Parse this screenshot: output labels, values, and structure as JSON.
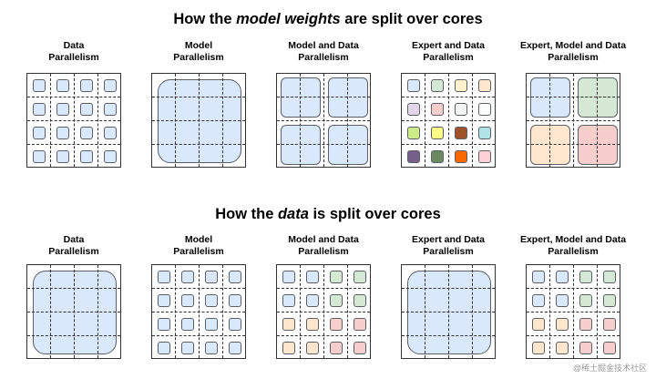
{
  "headings": {
    "weights": {
      "pre": "How the ",
      "em": "model weights",
      "post": " are split over cores"
    },
    "data": {
      "pre": "How the ",
      "em": "data",
      "post": " is split over cores"
    }
  },
  "labels": {
    "data": [
      "Data",
      "Parallelism"
    ],
    "model": [
      "Model",
      "Parallelism"
    ],
    "model_data": [
      "Model and Data",
      "Parallelism"
    ],
    "expert_data": [
      "Expert and Data",
      "Parallelism"
    ],
    "expert_model_data": [
      "Expert, Model and Data",
      "Parallelism"
    ]
  },
  "colors": {
    "blue": "#dae8fc",
    "green": "#d5e8d4",
    "orange": "#ffe6cc",
    "red": "#f8cecc",
    "yellow": "#fff2cc",
    "purple": "#e1d5e7",
    "lightgray": "#f5f5f5",
    "white": "#ffffff",
    "lime": "#cdeb8b",
    "brightyellow": "#ffff88",
    "brown": "#a0522d",
    "cyan": "#b0e3e6",
    "darkpurple": "#76608a",
    "darkgreen": "#6d8764",
    "brightorange": "#fa6800",
    "pink": "#ffd0d8"
  },
  "watermark": "@稀土掘金技术社区"
}
